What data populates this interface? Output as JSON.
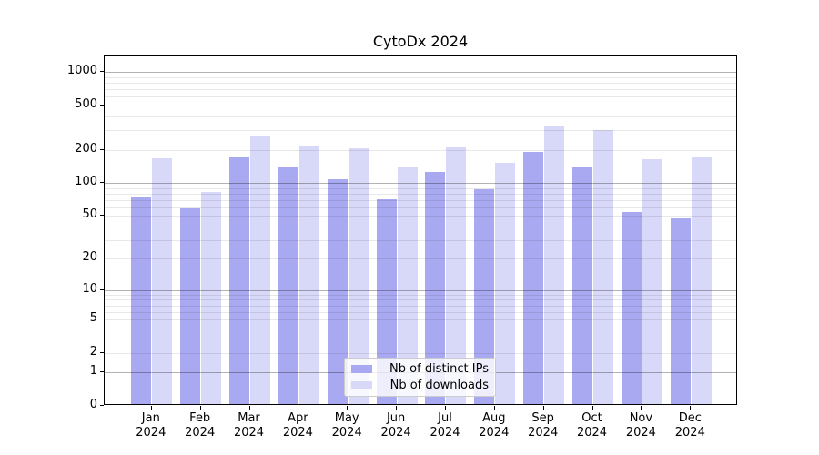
{
  "title": "CytoDx 2024",
  "chart_data": {
    "type": "bar",
    "title": "CytoDx 2024",
    "categories": [
      "Jan\n2024",
      "Feb\n2024",
      "Mar\n2024",
      "Apr\n2024",
      "May\n2024",
      "Jun\n2024",
      "Jul\n2024",
      "Aug\n2024",
      "Sep\n2024",
      "Oct\n2024",
      "Nov\n2024",
      "Dec\n2024"
    ],
    "series": [
      {
        "name": "Nb of distinct IPs",
        "color": "#a9a9f1",
        "values": [
          72,
          56,
          164,
          137,
          104,
          69,
          121,
          85,
          185,
          136,
          52,
          46
        ]
      },
      {
        "name": "Nb of downloads",
        "color": "#d8d8f8",
        "values": [
          160,
          80,
          254,
          211,
          197,
          133,
          206,
          147,
          318,
          288,
          157,
          165
        ]
      }
    ],
    "xlabel": "",
    "ylabel": "",
    "yscale": "log1p",
    "yticks": [
      0,
      1,
      2,
      5,
      10,
      20,
      50,
      100,
      200,
      500,
      1000
    ],
    "ylim": [
      0,
      1412
    ],
    "grid": "horizontal; dark lines at decades 1/10/100/1000, faint minor log lines",
    "legend_position": "inside bottom-center",
    "colors": {
      "axis": "#000000",
      "major_grid": "rgba(0,0,0,0.30)",
      "minor_grid": "rgba(0,0,0,0.09)",
      "background": "#ffffff",
      "legend_border": "#cccccc"
    }
  }
}
